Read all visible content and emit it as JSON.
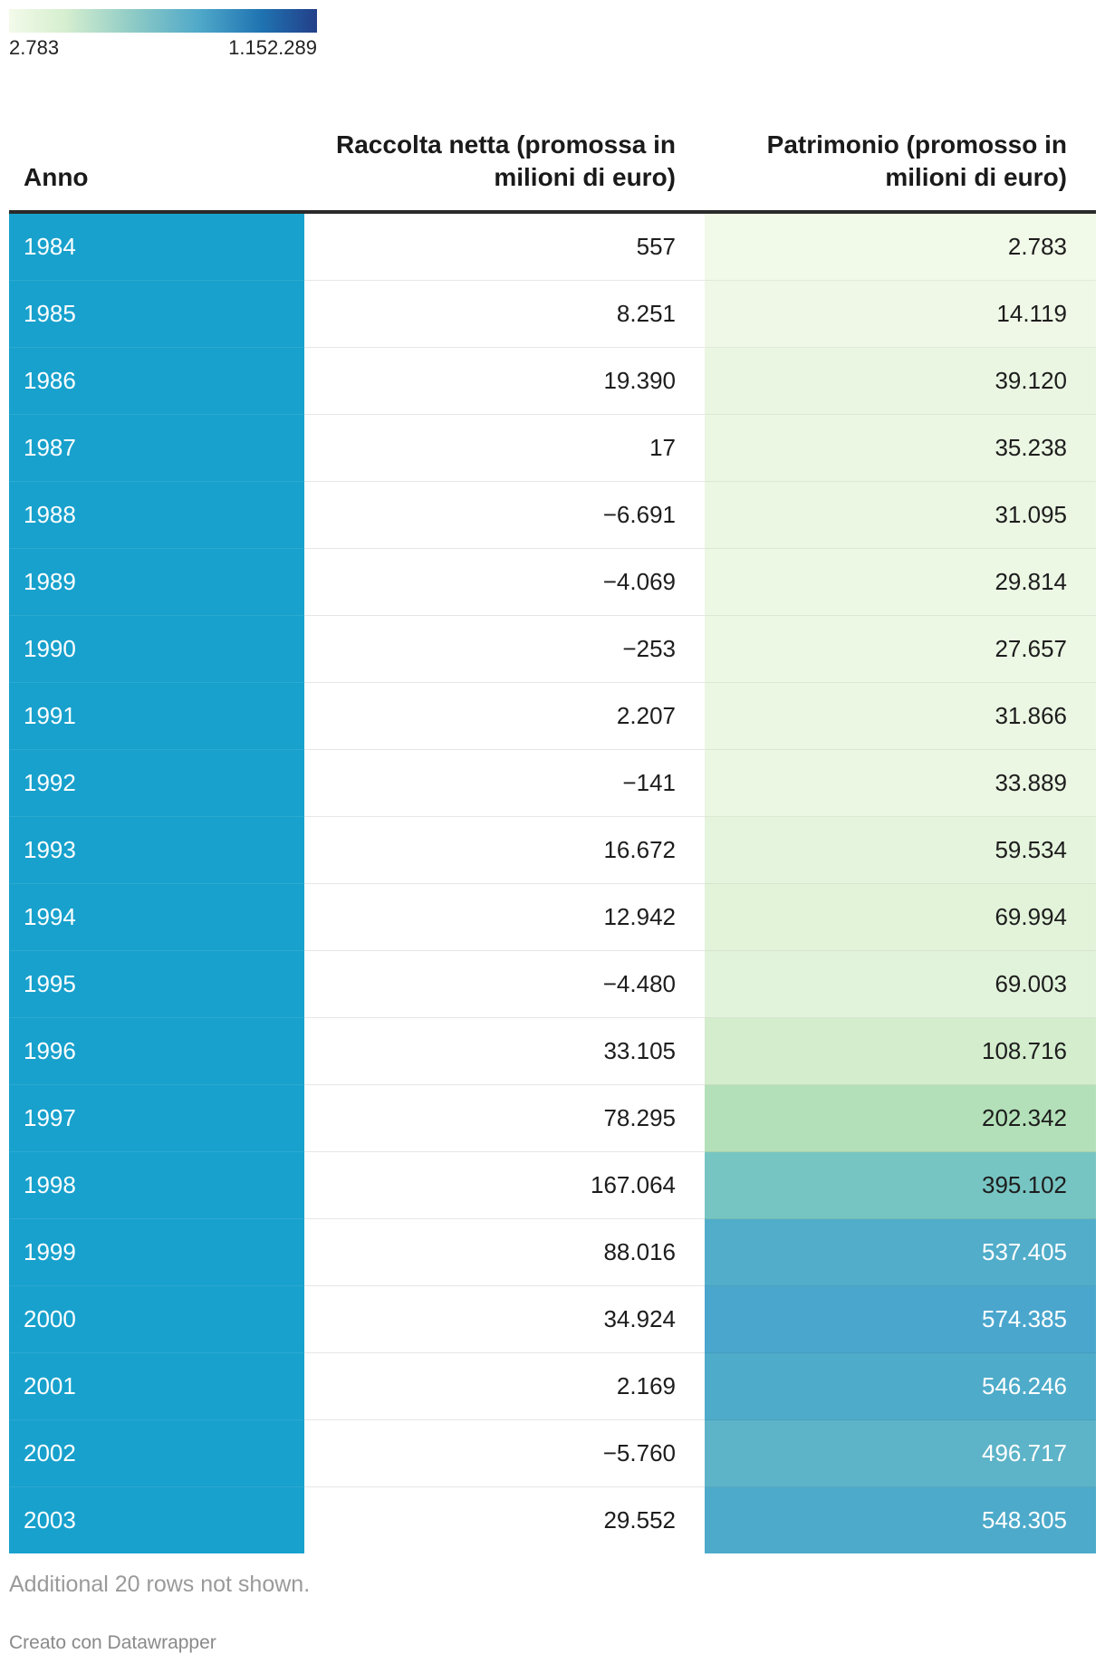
{
  "legend": {
    "min_label": "2.783",
    "max_label": "1.152.289",
    "min_value": 2783,
    "max_value": 1152289
  },
  "chart_data": {
    "type": "table",
    "columns": [
      "Anno",
      "Raccolta netta (promossa in milioni di euro)",
      "Patrimonio (promosso in milioni di euro)"
    ],
    "rows": [
      {
        "anno": "1984",
        "raccolta": "557",
        "patrimonio": "2.783",
        "patrimonio_value": 2783,
        "fill": "#f1f9e8"
      },
      {
        "anno": "1985",
        "raccolta": "8.251",
        "patrimonio": "14.119",
        "patrimonio_value": 14119,
        "fill": "#eff8e6"
      },
      {
        "anno": "1986",
        "raccolta": "19.390",
        "patrimonio": "39.120",
        "patrimonio_value": 39120,
        "fill": "#eaf6e2"
      },
      {
        "anno": "1987",
        "raccolta": "17",
        "patrimonio": "35.238",
        "patrimonio_value": 35238,
        "fill": "#ebf6e3"
      },
      {
        "anno": "1988",
        "raccolta": "−6.691",
        "patrimonio": "31.095",
        "patrimonio_value": 31095,
        "fill": "#ebf7e3"
      },
      {
        "anno": "1989",
        "raccolta": "−4.069",
        "patrimonio": "29.814",
        "patrimonio_value": 29814,
        "fill": "#ecf7e4"
      },
      {
        "anno": "1990",
        "raccolta": "−253",
        "patrimonio": "27.657",
        "patrimonio_value": 27657,
        "fill": "#ecf7e4"
      },
      {
        "anno": "1991",
        "raccolta": "2.207",
        "patrimonio": "31.866",
        "patrimonio_value": 31866,
        "fill": "#ebf7e3"
      },
      {
        "anno": "1992",
        "raccolta": "−141",
        "patrimonio": "33.889",
        "patrimonio_value": 33889,
        "fill": "#ebf6e3"
      },
      {
        "anno": "1993",
        "raccolta": "16.672",
        "patrimonio": "59.534",
        "patrimonio_value": 59534,
        "fill": "#e5f4dd"
      },
      {
        "anno": "1994",
        "raccolta": "12.942",
        "patrimonio": "69.994",
        "patrimonio_value": 69994,
        "fill": "#e2f3da"
      },
      {
        "anno": "1995",
        "raccolta": "−4.480",
        "patrimonio": "69.003",
        "patrimonio_value": 69003,
        "fill": "#e2f3db"
      },
      {
        "anno": "1996",
        "raccolta": "33.105",
        "patrimonio": "108.716",
        "patrimonio_value": 108716,
        "fill": "#d3edcd"
      },
      {
        "anno": "1997",
        "raccolta": "78.295",
        "patrimonio": "202.342",
        "patrimonio_value": 202342,
        "fill": "#b3e0b8"
      },
      {
        "anno": "1998",
        "raccolta": "167.064",
        "patrimonio": "395.102",
        "patrimonio_value": 395102,
        "fill": "#77c5c3"
      },
      {
        "anno": "1999",
        "raccolta": "88.016",
        "patrimonio": "537.405",
        "patrimonio_value": 537405,
        "fill": "#51adca",
        "light_text": true
      },
      {
        "anno": "2000",
        "raccolta": "34.924",
        "patrimonio": "574.385",
        "patrimonio_value": 574385,
        "fill": "#4aa6cd",
        "light_text": true
      },
      {
        "anno": "2001",
        "raccolta": "2.169",
        "patrimonio": "546.246",
        "patrimonio_value": 546246,
        "fill": "#4eabca",
        "light_text": true
      },
      {
        "anno": "2002",
        "raccolta": "−5.760",
        "patrimonio": "496.717",
        "patrimonio_value": 496717,
        "fill": "#5db3c8",
        "light_text": true
      },
      {
        "anno": "2003",
        "raccolta": "29.552",
        "patrimonio": "548.305",
        "patrimonio_value": 548305,
        "fill": "#4daaca",
        "light_text": true
      }
    ]
  },
  "note": "Additional 20 rows not shown.",
  "credit": "Creato con Datawrapper"
}
